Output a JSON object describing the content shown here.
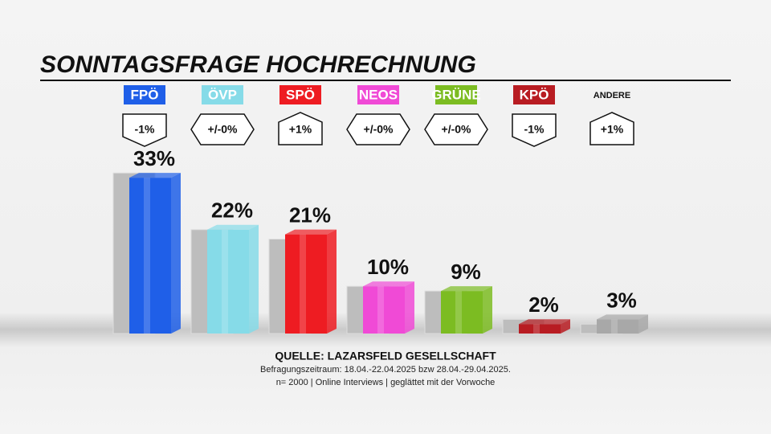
{
  "chart_data": {
    "type": "bar",
    "title": "SONNTAGSFRAGE HOCHRECHNUNG",
    "categories": [
      "FPÖ",
      "ÖVP",
      "SPÖ",
      "NEOS",
      "GRÜNE",
      "KPÖ",
      "ANDERE"
    ],
    "colors": [
      "#1f5fe8",
      "#86dbe8",
      "#ee1c22",
      "#f04ad6",
      "#7cbc22",
      "#b81c22",
      "#a8a8a8"
    ],
    "label_boxes": [
      true,
      true,
      true,
      true,
      true,
      true,
      false
    ],
    "series": [
      {
        "color": "#bdbdbd",
        "values": [
          34,
          22,
          20,
          10,
          9,
          3,
          2
        ]
      },
      {
        "values": [
          33,
          22,
          21,
          10,
          9,
          2,
          3
        ],
        "value_labels": [
          "33%",
          "22%",
          "21%",
          "10%",
          "9%",
          "2%",
          "3%"
        ]
      }
    ],
    "change_labels": [
      "-1%",
      "+/-0%",
      "+1%",
      "+/-0%",
      "+/-0%",
      "-1%",
      "+1%"
    ],
    "change_direction": [
      "down",
      "both",
      "up",
      "both",
      "both",
      "down",
      "up"
    ],
    "ylim": [
      0,
      40
    ],
    "source": "QUELLE: LAZARSFELD GESELLSCHAFT",
    "notes": [
      "Befragungszeitraum: 18.04.-22.04.2025 bzw 28.04.-29.04.2025.",
      "n= 2000 | Online Interviews | geglättet mit der Vorwoche"
    ]
  }
}
